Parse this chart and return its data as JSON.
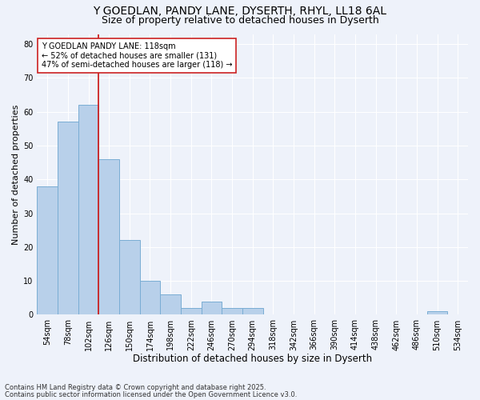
{
  "title1": "Y GOEDLAN, PANDY LANE, DYSERTH, RHYL, LL18 6AL",
  "title2": "Size of property relative to detached houses in Dyserth",
  "xlabel": "Distribution of detached houses by size in Dyserth",
  "ylabel": "Number of detached properties",
  "categories": [
    "54sqm",
    "78sqm",
    "102sqm",
    "126sqm",
    "150sqm",
    "174sqm",
    "198sqm",
    "222sqm",
    "246sqm",
    "270sqm",
    "294sqm",
    "318sqm",
    "342sqm",
    "366sqm",
    "390sqm",
    "414sqm",
    "438sqm",
    "462sqm",
    "486sqm",
    "510sqm",
    "534sqm"
  ],
  "values": [
    38,
    57,
    62,
    46,
    22,
    10,
    6,
    2,
    4,
    2,
    2,
    0,
    0,
    0,
    0,
    0,
    0,
    0,
    0,
    1,
    0
  ],
  "bar_color": "#b8d0ea",
  "bar_edge_color": "#7aadd4",
  "vline_color": "#cc2222",
  "annotation_text": "Y GOEDLAN PANDY LANE: 118sqm\n← 52% of detached houses are smaller (131)\n47% of semi-detached houses are larger (118) →",
  "annotation_box_color": "#ffffff",
  "annotation_box_edge": "#cc2222",
  "ylim": [
    0,
    83
  ],
  "yticks": [
    0,
    10,
    20,
    30,
    40,
    50,
    60,
    70,
    80
  ],
  "footer_line1": "Contains HM Land Registry data © Crown copyright and database right 2025.",
  "footer_line2": "Contains public sector information licensed under the Open Government Licence v3.0.",
  "bg_color": "#eef2fa",
  "grid_color": "#ffffff",
  "title_fontsize": 10,
  "subtitle_fontsize": 9,
  "tick_fontsize": 7,
  "xlabel_fontsize": 8.5,
  "ylabel_fontsize": 8,
  "annotation_fontsize": 7,
  "footer_fontsize": 6
}
